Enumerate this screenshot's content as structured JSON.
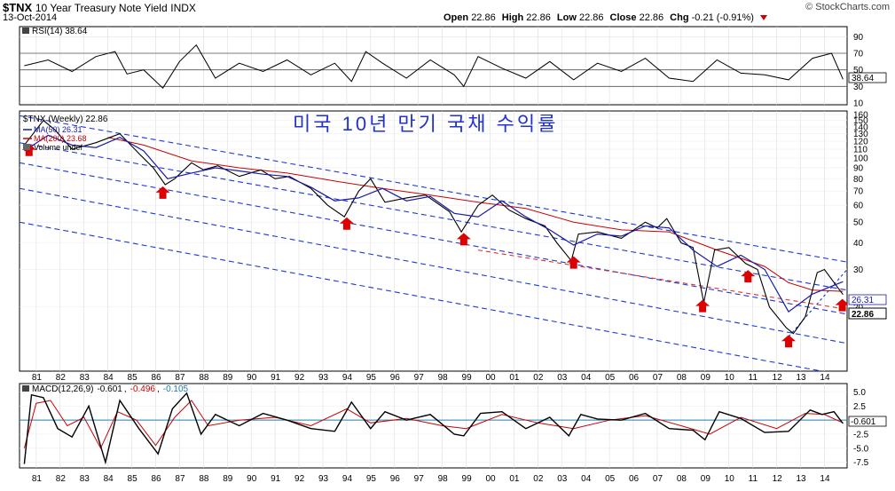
{
  "header": {
    "symbol": "$TNX",
    "name": "10 Year Treasury Note Yield",
    "exchange": "INDX",
    "date": "13-Oct-2014",
    "brand": "© StockCharts.com",
    "open_label": "Open",
    "open": "22.86",
    "high_label": "High",
    "high": "22.86",
    "low_label": "Low",
    "low": "22.86",
    "close_label": "Close",
    "close": "22.86",
    "chg_label": "Chg",
    "chg": "-0.21 (-0.91%)"
  },
  "chart_data": [
    {
      "type": "line",
      "panel": "rsi",
      "legend": "RSI(14) 38.64",
      "current_value_label": "38.64",
      "ylim": [
        10,
        100
      ],
      "yticks": [
        "90",
        "70",
        "50",
        "30",
        "10"
      ],
      "reference_levels": [
        70,
        50,
        30
      ],
      "series": [
        {
          "x": [
            1980.5,
            1981.5,
            1982.5,
            1983.5,
            1984.3,
            1984.8,
            1985.5,
            1986.3,
            1987.0,
            1987.7,
            1988.5,
            1989.5,
            1990.5,
            1991.5,
            1992.5,
            1993.5,
            1994.2,
            1994.8,
            1995.5,
            1996.5,
            1997.5,
            1998.5,
            1998.9,
            1999.5,
            2000.5,
            2001.5,
            2002.5,
            2003.5,
            2004.5,
            2005.5,
            2006.5,
            2007.5,
            2008.5,
            2009.5,
            2010.5,
            2011.5,
            2012.5,
            2013.5,
            2014.3,
            2014.78
          ],
          "values": [
            55,
            62,
            48,
            66,
            72,
            45,
            50,
            28,
            60,
            80,
            40,
            58,
            48,
            62,
            44,
            58,
            36,
            72,
            58,
            40,
            62,
            44,
            30,
            66,
            52,
            40,
            60,
            38,
            58,
            48,
            64,
            40,
            36,
            62,
            46,
            44,
            38,
            64,
            70,
            38.64
          ]
        }
      ]
    },
    {
      "type": "line",
      "panel": "price",
      "title": "미국 10년 만기 국채 수익률",
      "legend_price": "$TNX (Weekly) 22.86",
      "legend_ma50": "MA(50) 26.31",
      "legend_ma200": "MA(200) 23.68",
      "legend_volume": "Volume undef",
      "ma50_label": "26.31",
      "close_label": "22.86",
      "yscale": "log",
      "ylim": [
        10,
        160
      ],
      "yticks": [
        "160",
        "150",
        "140",
        "130",
        "120",
        "110",
        "100",
        "90",
        "80",
        "70",
        "60",
        "50",
        "40",
        "30",
        "20"
      ],
      "series": [
        {
          "name": "$TNX (Weekly)",
          "x": [
            1980.5,
            1981.3,
            1981.8,
            1982.5,
            1983.5,
            1984.5,
            1985.3,
            1985.9,
            1986.4,
            1986.8,
            1987.5,
            1988.0,
            1988.6,
            1989.5,
            1990.4,
            1991.0,
            1991.6,
            1992.5,
            1993.2,
            1993.9,
            1994.5,
            1995.0,
            1995.6,
            1996.5,
            1997.3,
            1998.3,
            1998.8,
            1999.5,
            2000.1,
            2000.8,
            2001.5,
            2002.3,
            2002.8,
            2003.4,
            2003.7,
            2004.5,
            2005.5,
            2006.5,
            2007.0,
            2007.4,
            2008.0,
            2008.5,
            2008.95,
            2009.4,
            2010.0,
            2010.7,
            2011.2,
            2011.7,
            2012.4,
            2012.7,
            2013.2,
            2013.7,
            2014.0,
            2014.78
          ],
          "values": [
            115,
            150,
            135,
            110,
            118,
            130,
            105,
            90,
            75,
            80,
            95,
            88,
            92,
            82,
            88,
            80,
            82,
            72,
            60,
            53,
            70,
            80,
            62,
            65,
            67,
            56,
            45,
            60,
            67,
            57,
            52,
            48,
            40,
            33,
            44,
            45,
            42,
            50,
            47,
            52,
            40,
            38,
            21,
            37,
            38,
            32,
            30,
            20,
            16,
            15,
            18,
            29,
            30,
            22.86
          ]
        },
        {
          "name": "MA(50)",
          "x": [
            1980.5,
            1981.5,
            1982.5,
            1983.5,
            1984.5,
            1985.5,
            1986.5,
            1987.5,
            1988.5,
            1989.5,
            1990.5,
            1991.5,
            1992.5,
            1993.5,
            1994.5,
            1995.5,
            1996.5,
            1997.5,
            1998.5,
            1999.5,
            2000.5,
            2001.5,
            2002.5,
            2003.5,
            2004.5,
            2005.5,
            2006.5,
            2007.5,
            2008.5,
            2009.5,
            2010.5,
            2011.5,
            2012.5,
            2013.5,
            2014.78
          ],
          "values": [
            108,
            128,
            115,
            112,
            125,
            108,
            80,
            85,
            90,
            87,
            84,
            82,
            73,
            63,
            65,
            72,
            63,
            66,
            55,
            53,
            63,
            53,
            46,
            39,
            44,
            43,
            48,
            47,
            37,
            31,
            35,
            30,
            19,
            23,
            26.31
          ]
        },
        {
          "name": "MA(200)",
          "x": [
            1984.0,
            1985.5,
            1987.5,
            1989.5,
            1991.5,
            1993.5,
            1995.5,
            1997.5,
            1999.5,
            2001.5,
            2003.5,
            2005.5,
            2007.5,
            2009.5,
            2011.5,
            2012.5,
            2013.5,
            2014.78
          ],
          "values": [
            125,
            115,
            97,
            90,
            85,
            78,
            72,
            67,
            62,
            58,
            50,
            46,
            45,
            37,
            31,
            26,
            24,
            23.68
          ]
        }
      ]
    },
    {
      "type": "line",
      "panel": "macd",
      "legend_name": "MACD(12,26,9)",
      "legend_macd": "-0.601",
      "legend_signal": "-0.496",
      "legend_hist": "-0.105",
      "current_value_label": "-0.601",
      "ylim": [
        -8.5,
        6.5
      ],
      "yticks": [
        "5.0",
        "2.5",
        "0.0",
        "-2.5",
        "-5.0",
        "-7.5"
      ],
      "series": [
        {
          "name": "MACD",
          "x": [
            1980.5,
            1980.8,
            1981.3,
            1981.9,
            1982.5,
            1983.2,
            1983.9,
            1984.5,
            1985.3,
            1986.1,
            1986.7,
            1987.3,
            1987.9,
            1988.5,
            1989.5,
            1990.5,
            1991.5,
            1992.5,
            1993.5,
            1994.2,
            1995.0,
            1995.6,
            1996.5,
            1997.5,
            1998.5,
            1998.9,
            1999.6,
            2000.5,
            2001.5,
            2002.5,
            2003.3,
            2003.8,
            2004.5,
            2005.5,
            2006.5,
            2007.5,
            2008.5,
            2009.0,
            2009.6,
            2010.5,
            2011.5,
            2012.5,
            2013.4,
            2013.9,
            2014.4,
            2014.78
          ],
          "values": [
            -7.8,
            4.5,
            4.0,
            -1.5,
            -3.0,
            2.5,
            -7.5,
            3.5,
            -1.5,
            -6.0,
            2.0,
            4.8,
            -2.5,
            1.0,
            -1.0,
            1.2,
            0.0,
            -1.5,
            -2.0,
            3.2,
            -1.5,
            1.5,
            0.0,
            1.0,
            -2.5,
            -2.8,
            1.2,
            1.5,
            -1.5,
            0.5,
            -2.8,
            1.0,
            0.2,
            0.0,
            1.2,
            -1.5,
            -1.8,
            -3.5,
            1.5,
            0.3,
            -2.2,
            -2.0,
            1.8,
            1.0,
            1.5,
            -0.601
          ]
        },
        {
          "name": "Signal",
          "x": [
            1980.5,
            1981.0,
            1981.6,
            1982.3,
            1983.0,
            1983.7,
            1984.4,
            1985.2,
            1986.0,
            1986.8,
            1987.5,
            1988.2,
            1989.5,
            1991.0,
            1992.5,
            1994.0,
            1995.0,
            1996.5,
            1998.0,
            1999.0,
            2000.5,
            2002.0,
            2003.5,
            2005.0,
            2006.5,
            2008.0,
            2009.2,
            2010.5,
            2012.0,
            2013.2,
            2014.0,
            2014.78
          ],
          "values": [
            -5.0,
            3.0,
            3.5,
            -1.0,
            0.5,
            -5.0,
            1.5,
            0.0,
            -4.5,
            0.5,
            3.5,
            -1.0,
            0.0,
            0.5,
            -1.0,
            2.0,
            -0.5,
            0.3,
            -1.0,
            -1.5,
            1.0,
            -0.5,
            -1.5,
            0.0,
            0.8,
            -1.0,
            -2.5,
            0.5,
            -1.5,
            1.2,
            1.0,
            -0.496
          ]
        }
      ]
    }
  ],
  "x_axis": {
    "labels": [
      "81",
      "82",
      "83",
      "84",
      "85",
      "86",
      "87",
      "88",
      "89",
      "90",
      "91",
      "92",
      "93",
      "94",
      "95",
      "96",
      "97",
      "98",
      "99",
      "00",
      "01",
      "02",
      "03",
      "04",
      "05",
      "06",
      "07",
      "08",
      "09",
      "10",
      "11",
      "12",
      "13",
      "14"
    ]
  },
  "annotations": {
    "arrow_years": [
      1980.7,
      1986.3,
      1994.0,
      1998.9,
      2003.5,
      2008.9,
      2010.8,
      2012.5,
      2014.75
    ]
  },
  "colors": {
    "price": "#000000",
    "ma50": "#1a1aaa",
    "ma200": "#cc0000",
    "channel": "#1a3ad8",
    "red_dash": "#e03030",
    "macd": "#000000",
    "signal": "#cc0000",
    "histogram": "#2080b0",
    "title": "#2233cc",
    "arrow": "#dd0000"
  }
}
